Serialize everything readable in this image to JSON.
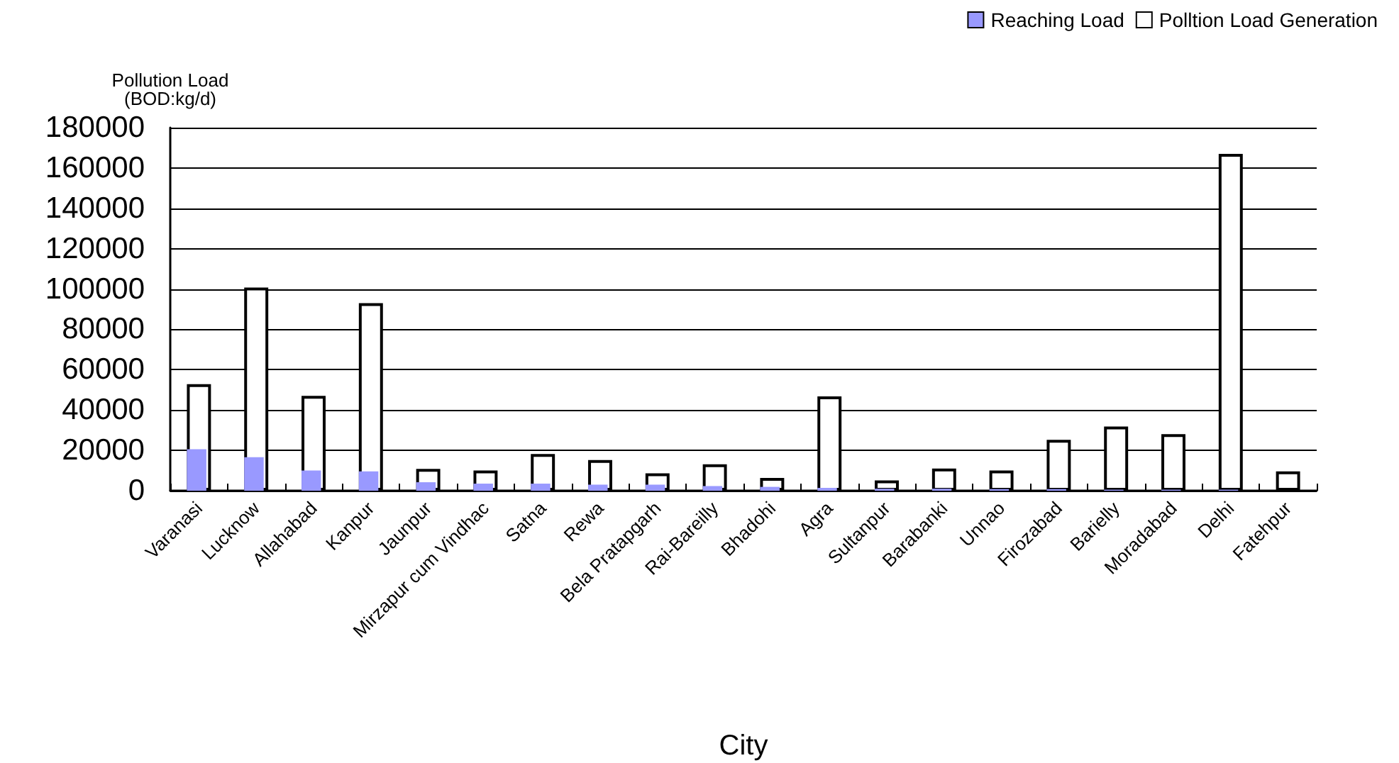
{
  "chart_data": {
    "type": "bar",
    "xlabel": "City",
    "ylabel": "Pollution Load\n(BOD:kg/d)",
    "categories": [
      "Varanasi",
      "Lucknow",
      "Allahabad",
      "Kanpur",
      "Jaunpur",
      "Mirzapur cum Vindhac",
      "Satna",
      "Rewa",
      "Bela Pratapgarh",
      "Rai-Bareilly",
      "Bhadohi",
      "Agra",
      "Sultanpur",
      "Barabanki",
      "Unnao",
      "Firozabad",
      "Barielly",
      "Moradabad",
      "Delhi",
      "Fatehpur"
    ],
    "series": [
      {
        "name": "Reaching Load",
        "color": "#9999ff",
        "values": [
          20600,
          16600,
          10000,
          9600,
          4200,
          3500,
          3500,
          3000,
          3000,
          2300,
          1900,
          1400,
          1000,
          1000,
          800,
          800,
          500,
          500,
          500,
          0
        ]
      },
      {
        "name": "Polltion Load Generation",
        "color": "#ffffff",
        "values": [
          52800,
          100700,
          47000,
          93000,
          10800,
          10000,
          18200,
          15200,
          8600,
          13100,
          6300,
          46800,
          5100,
          11000,
          10000,
          25200,
          31800,
          28000,
          167000,
          9600
        ]
      }
    ],
    "ylim": [
      0,
      180000
    ],
    "yticks": [
      0,
      20000,
      40000,
      60000,
      80000,
      100000,
      120000,
      140000,
      160000,
      180000
    ],
    "grid": "y",
    "legend": "top right"
  }
}
